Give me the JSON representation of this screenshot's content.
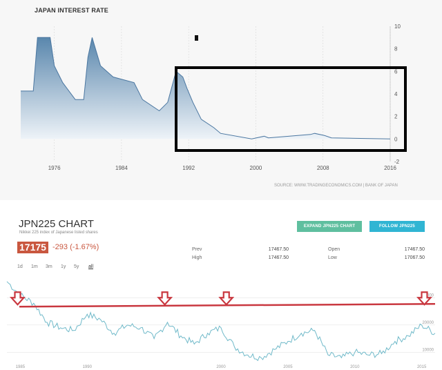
{
  "top": {
    "title": "JAPAN INTEREST RATE",
    "source": "SOURCE: WWW.TRADINGECONOMICS.COM | BANK OF JAPAN"
  },
  "bottom": {
    "title": "JPN225 CHART",
    "subtitle": "Nikkei 225 index of Japanese listed shares",
    "price": "17175",
    "change": "-293 (-1.67%)",
    "buttons": {
      "expand": "EXPAND JPN225 CHART",
      "follow": "FOLLOW JPN225"
    },
    "stats": {
      "prev_label": "Prev",
      "prev_value": "17467.50",
      "high_label": "High",
      "high_value": "17467.50",
      "open_label": "Open",
      "open_value": "17467.50",
      "low_label": "Low",
      "low_value": "17067.50"
    },
    "ranges": [
      "1d",
      "1m",
      "3m",
      "1y",
      "5y",
      "all"
    ],
    "active_range": "all"
  },
  "chart_data": [
    {
      "type": "area",
      "title": "JAPAN INTEREST RATE",
      "x_ticks": [
        "1976",
        "1984",
        "1992",
        "2000",
        "2008",
        "2016"
      ],
      "y_ticks": [
        "10",
        "8",
        "6",
        "4",
        "2",
        "0",
        "-2"
      ],
      "xlim": [
        1972,
        2016
      ],
      "ylim": [
        -2,
        10
      ],
      "grid": false,
      "y_axis": "right",
      "x": [
        1972,
        1973.5,
        1974,
        1975.5,
        1976,
        1977,
        1978.5,
        1979.5,
        1980,
        1980.5,
        1981.5,
        1983,
        1985.5,
        1986.5,
        1988.5,
        1989.5,
        1990.5,
        1991.3,
        1991.8,
        1992.5,
        1993.5,
        1995,
        1995.8,
        1999.5,
        2001,
        2001.5,
        2006.5,
        2007,
        2008.2,
        2009,
        2016
      ],
      "y": [
        4.25,
        4.25,
        9,
        9,
        6.5,
        5,
        3.5,
        3.5,
        7.25,
        9,
        6.5,
        5.5,
        5,
        3.5,
        2.5,
        3.25,
        6,
        5.5,
        4.5,
        3.25,
        1.75,
        1,
        0.5,
        0,
        0.25,
        0.1,
        0.4,
        0.5,
        0.3,
        0.1,
        0
      ],
      "annotations": [
        "black rectangle highlighting 1991-2016",
        "small black square marker near 1993"
      ]
    },
    {
      "type": "line",
      "title": "JPN225 CHART",
      "x_ticks": [
        "1985",
        "1990",
        "2000",
        "2005",
        "2010",
        "2015"
      ],
      "y_ticks": [
        "30000",
        "20000",
        "10000"
      ],
      "xlim": [
        1984,
        2016
      ],
      "ylim": [
        5000,
        40000
      ],
      "y_axis": "right",
      "series": [
        {
          "x": [
            1984,
            1985,
            1986,
            1987,
            1988,
            1989,
            1990,
            1991,
            1992,
            1993,
            1994,
            1995,
            1996,
            1997,
            1998,
            1999,
            2000,
            2001,
            2002,
            2003,
            2004,
            2005,
            2006,
            2007,
            2008,
            2009,
            2010,
            2011,
            2012,
            2013,
            2014,
            2015,
            2016
          ],
          "y": [
            36000,
            31000,
            28000,
            21000,
            19000,
            18000,
            24000,
            22000,
            17000,
            20000,
            19000,
            15000,
            21000,
            16000,
            13000,
            17000,
            19000,
            12000,
            9000,
            8000,
            11000,
            14000,
            17000,
            18000,
            9000,
            8000,
            10000,
            9000,
            9500,
            14000,
            16000,
            20000,
            17000
          ]
        }
      ],
      "horizontal_line": 27500,
      "markers": [
        {
          "label": "down-arrow",
          "x": 1984.8
        },
        {
          "label": "down-arrow",
          "x": 1995.8
        },
        {
          "label": "down-arrow",
          "x": 2000.4
        },
        {
          "label": "down-arrow",
          "x": 2015.2
        }
      ]
    }
  ],
  "colors": {
    "area_fill_top": "#5a87ad",
    "area_fill_bottom": "#eef3f8",
    "area_line": "#4a76a0",
    "nikkei_line": "#6fb9c9",
    "marker_red": "#c9373f",
    "price_red": "#c9573f",
    "btn_green": "#5fbf9f",
    "btn_blue": "#30b5d3"
  }
}
